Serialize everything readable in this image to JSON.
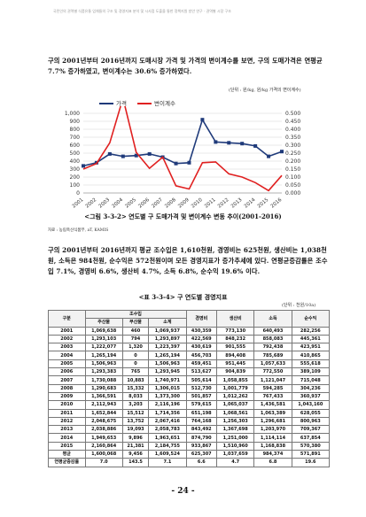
{
  "header_note": "국민인의 권역별 식품유통 업체들의 구조 및 경영지표 분석 및 시사점 도출을 통한 정책지원 방안 연구 - 권역별 시장 구조",
  "paragraph1": "구의 2001년부터 2016년까지 도매시장 가격 및 가격의 변이계수를 보면, 구의 도매가격은 연평균 7.7% 증가하였고, 변이계수는 30.6% 증가하였다.",
  "chart_unit": "(단위 : 원/kg, 원/kg 가격의 변이계수)",
  "figure_caption": "<그림 3-3-2> 연도별 구 도매가격 및 변이계수 변동 추이(2001-2016)",
  "source_note": "자료 : 농림축산식품부, aT, KAMIS",
  "paragraph2": "구의 2001년부터 2016년까지 평균 조수입은 1,610천원, 경영비는 625천원, 생산비는 1,038천원, 소득은 984천원, 순수익은 572천원이며 모든 경영지표가 증가추세에 있다. 연평균증감률은 조수입 7.1%, 경영비 6.6%, 생산비 4.7%, 소득 6.8%, 순수익 19.6% 이다.",
  "table_caption": "<표 3-3-4> 구 연도별 경영지표",
  "table_unit": "(단위 : 천원/10a)",
  "table": {
    "headers": {
      "year": "구분",
      "revenue_group": "조수입",
      "main_product": "주산물",
      "by_product": "부산물",
      "subtotal": "소계",
      "mgmt_cost": "경영비",
      "prod_cost": "생산비",
      "income": "소득",
      "net_profit": "순수익"
    },
    "rows": [
      [
        "2001",
        "1,069,638",
        "460",
        "1,069,937",
        "430,359",
        "773,130",
        "640,493",
        "282,256"
      ],
      [
        "2002",
        "1,293,103",
        "794",
        "1,293,897",
        "422,569",
        "848,232",
        "858,083",
        "445,361"
      ],
      [
        "2003",
        "1,222,077",
        "1,320",
        "1,223,397",
        "430,619",
        "901,555",
        "792,438",
        "423,951"
      ],
      [
        "2004",
        "1,265,194",
        "0",
        "1,265,194",
        "456,703",
        "894,408",
        "785,689",
        "410,865"
      ],
      [
        "2005",
        "1,506,963",
        "0",
        "1,506,963",
        "459,451",
        "951,445",
        "1,057,633",
        "555,618"
      ],
      [
        "2006",
        "1,293,383",
        "765",
        "1,293,945",
        "513,627",
        "904,839",
        "772,550",
        "389,109"
      ],
      [
        "2007",
        "1,730,088",
        "10,883",
        "1,740,971",
        "505,614",
        "1,058,855",
        "1,121,047",
        "715,048"
      ],
      [
        "2008",
        "1,290,683",
        "15,332",
        "1,306,015",
        "512,730",
        "1,001,779",
        "594,285",
        "304,236"
      ],
      [
        "2009",
        "1,366,591",
        "8,033",
        "1,373,300",
        "501,857",
        "1,012,262",
        "767,433",
        "360,937"
      ],
      [
        "2010",
        "2,112,943",
        "3,203",
        "2,116,196",
        "579,615",
        "1,065,037",
        "1,436,581",
        "1,043,160"
      ],
      [
        "2011",
        "1,652,844",
        "15,512",
        "1,714,356",
        "651,198",
        "1,068,561",
        "1,063,389",
        "628,055"
      ],
      [
        "2012",
        "2,048,675",
        "13,752",
        "2,067,416",
        "764,168",
        "1,256,303",
        "1,296,681",
        "800,963"
      ],
      [
        "2013",
        "2,038,886",
        "19,093",
        "2,058,783",
        "843,492",
        "1,367,698",
        "1,203,970",
        "709,367"
      ],
      [
        "2014",
        "1,949,653",
        "9,896",
        "1,963,651",
        "874,790",
        "1,251,000",
        "1,114,114",
        "637,854"
      ],
      [
        "2015",
        "2,160,864",
        "21,381",
        "2,184,755",
        "933,867",
        "1,510,960",
        "1,168,838",
        "570,380"
      ],
      [
        "평균",
        "1,600,068",
        "9,456",
        "1,609,524",
        "625,307",
        "1,037,659",
        "984,374",
        "571,891"
      ],
      [
        "연평균증감률",
        "7.0",
        "143.5",
        "7.1",
        "6.6",
        "4.7",
        "6.8",
        "19.6"
      ]
    ]
  },
  "page_number": "- 24 -",
  "chart_data": {
    "type": "line",
    "x": [
      "2001",
      "2002",
      "2003",
      "2004",
      "2005",
      "2006",
      "2007",
      "2008",
      "2009",
      "2010",
      "2011",
      "2012",
      "2013",
      "2014",
      "2015",
      "2016"
    ],
    "series": [
      {
        "name": "가격",
        "axis": "left",
        "color": "#1f3a7a",
        "values": [
          340,
          380,
          490,
          460,
          470,
          490,
          450,
          370,
          380,
          920,
          640,
          630,
          620,
          590,
          460,
          520
        ]
      },
      {
        "name": "변이계수",
        "axis": "right",
        "color": "#e02020",
        "values": [
          0.15,
          0.185,
          0.315,
          0.595,
          0.255,
          0.155,
          0.225,
          0.045,
          0.025,
          0.19,
          0.195,
          0.12,
          0.1,
          0.065,
          0.015,
          0.11
        ]
      }
    ],
    "y_left": {
      "min": 0,
      "max": 1000,
      "ticks": [
        "0",
        "100",
        "200",
        "300",
        "400",
        "500",
        "600",
        "700",
        "800",
        "900",
        "1,000"
      ]
    },
    "y_right": {
      "min": 0,
      "max": 0.5,
      "ticks": [
        "0.000",
        "0.050",
        "0.100",
        "0.150",
        "0.200",
        "0.250",
        "0.300",
        "0.350",
        "0.400",
        "0.450",
        "0.500"
      ]
    },
    "legend_placement": "top-left",
    "grid": true
  }
}
